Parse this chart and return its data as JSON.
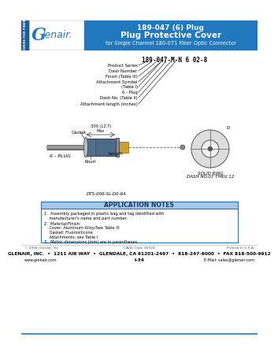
{
  "header_bg": "#2178be",
  "header_text_color": "#ffffff",
  "sidebar_bg": "#1a5fa0",
  "logo_bg": "#ffffff",
  "page_bg": "#ffffff",
  "title_line1": "189-047 (6) Plug",
  "title_line2": "Plug Protective Cover",
  "title_line3": "for Single Channel 180-071 Fiber Optic Connector",
  "part_number_display": "189-047-M-N 6 02-8",
  "callout_labels": [
    "Product Series",
    "Dash Number",
    "Finish (Table III)",
    "Attachment Symbol",
    "(Table I)",
    "6 - Plug",
    "Dash No. (Table II)",
    "Attachment length (inches)"
  ],
  "app_notes_title": "APPLICATION NOTES",
  "app_notes_title_bg": "#a8c8e8",
  "app_notes_border": "#2178be",
  "app_note_lines": [
    "1.  Assembly packaged in plastic bag and tag identified with",
    "    manufacturer's name and part number.",
    "2.  Material/Finish:",
    "    Cover: Aluminum Alloy/See Table III",
    "    Gasket: Fluorosilicone",
    "    Attachments: see Table I",
    "3.  Metric dimensions (mm) are in parentheses."
  ],
  "footer_copyright": "© 2000 Glenair, Inc.",
  "footer_cage": "CAGE Code 06324",
  "footer_printed": "Printed in U.S.A.",
  "footer_main": "GLENAIR, INC.  •  1211 AIR WAY  •  GLENDALE, CA 91201-2497  •  818-247-6000  •  FAX 818-500-9912",
  "footer_web": "www.glenair.com",
  "footer_page": "I-34",
  "footer_email": "E-Mail: sales@glenair.com",
  "solid_ring_label1": "SOLID RING",
  "solid_ring_label2": "DASH NO.07 THRU 12",
  "plug_label": "6 - PLUG",
  "gasket_label": "Gasket",
  "knurl_label": "Knurl",
  "dim_label": ".500 (12.7)\nMax",
  "dts_label": "DTS-006-SL-D0-6A",
  "length_label": "Length",
  "sidebar_text": "ACCESSORIES FOR FIBER OPTIC"
}
